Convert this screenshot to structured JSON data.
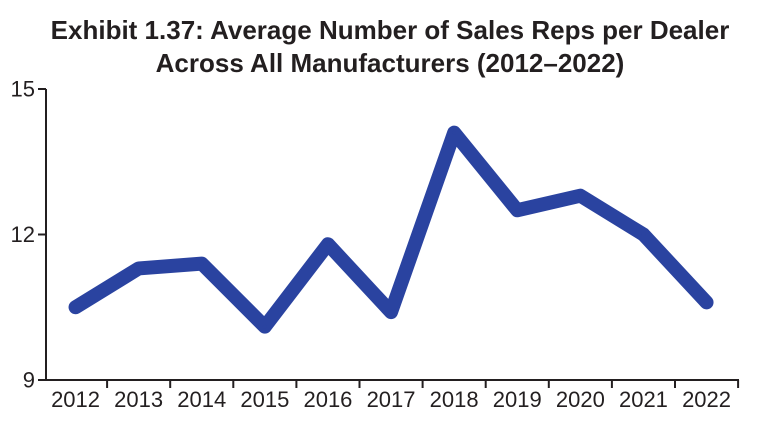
{
  "title_lines": [
    "Exhibit 1.37: Average Number of Sales Reps per Dealer",
    "Across All Manufacturers (2012–2022)"
  ],
  "chart_data": {
    "type": "line",
    "title": "Exhibit 1.37: Average Number of Sales Reps per Dealer Across All Manufacturers (2012–2022)",
    "categories": [
      "2012",
      "2013",
      "2014",
      "2015",
      "2016",
      "2017",
      "2018",
      "2019",
      "2020",
      "2021",
      "2022"
    ],
    "series": [
      {
        "values": [
          10.5,
          11.3,
          11.4,
          10.1,
          11.8,
          10.4,
          14.1,
          12.5,
          12.8,
          12.0,
          10.6
        ],
        "color": "#2a43a0"
      }
    ],
    "ylim": [
      9,
      15
    ],
    "yticks": [
      9,
      12,
      15
    ],
    "xlabel": "",
    "ylabel": "",
    "grid": false,
    "legend": "none"
  }
}
